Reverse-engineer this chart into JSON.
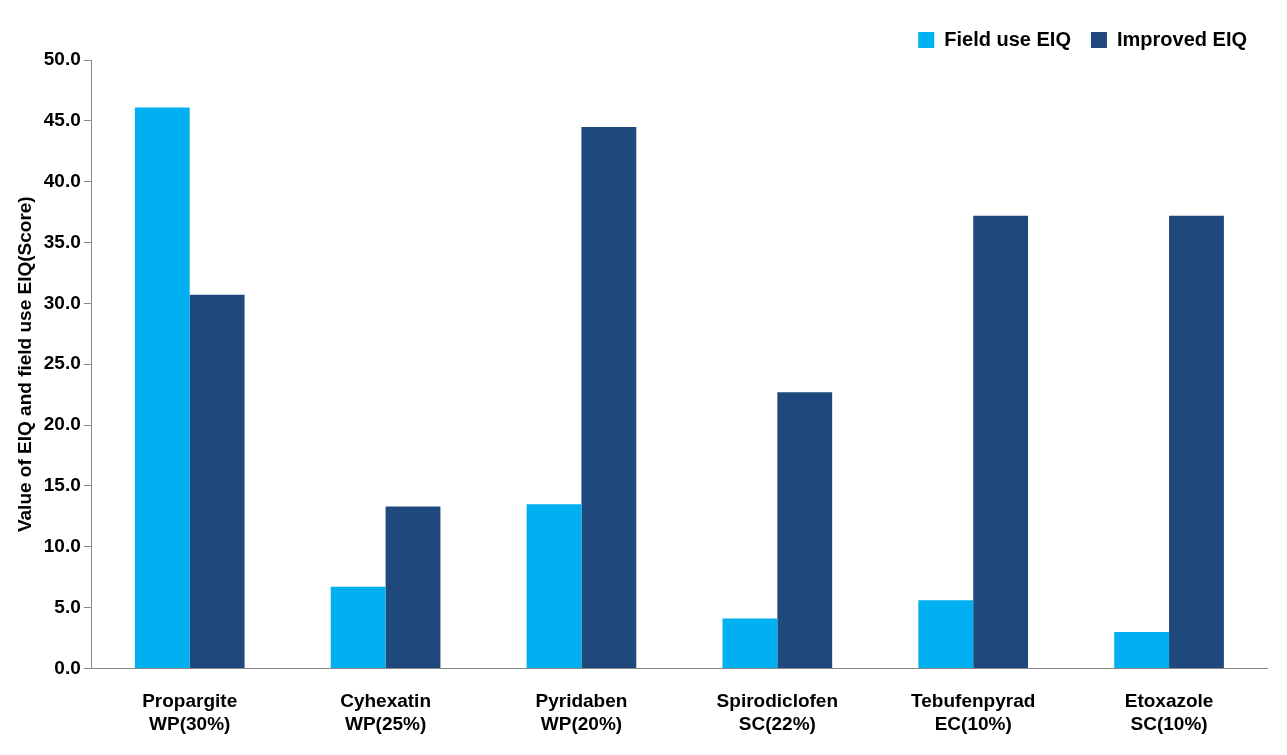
{
  "chart_data": {
    "type": "bar",
    "ylabel": "Value of EIQ and field use EIQ(Score)",
    "categories": [
      "Propargite\nWP(30%)",
      "Cyhexatin\nWP(25%)",
      "Pyridaben\nWP(20%)",
      "Spirodiclofen\nSC(22%)",
      "Tebufenpyrad\nEC(10%)",
      "Etoxazole\nSC(10%)"
    ],
    "series": [
      {
        "name": "Field use EIQ",
        "color": "#00b0f0",
        "values": [
          46.1,
          6.7,
          13.5,
          4.1,
          5.6,
          3.0
        ]
      },
      {
        "name": "Improved EIQ",
        "color": "#1f497d",
        "values": [
          30.7,
          13.3,
          44.5,
          22.7,
          37.2,
          37.2
        ]
      }
    ],
    "ylim": [
      0,
      50
    ],
    "yticks": [
      {
        "value": 0,
        "label": "0.0"
      },
      {
        "value": 5,
        "label": "5.0"
      },
      {
        "value": 10,
        "label": "10.0"
      },
      {
        "value": 15,
        "label": "15.0"
      },
      {
        "value": 20,
        "label": "20.0"
      },
      {
        "value": 25,
        "label": "25.0"
      },
      {
        "value": 30,
        "label": "30.0"
      },
      {
        "value": 35,
        "label": "35.0"
      },
      {
        "value": 40,
        "label": "40.0"
      },
      {
        "value": 45,
        "label": "45.0"
      },
      {
        "value": 50,
        "label": "50.0"
      }
    ],
    "grid": false,
    "legend": "top right"
  }
}
